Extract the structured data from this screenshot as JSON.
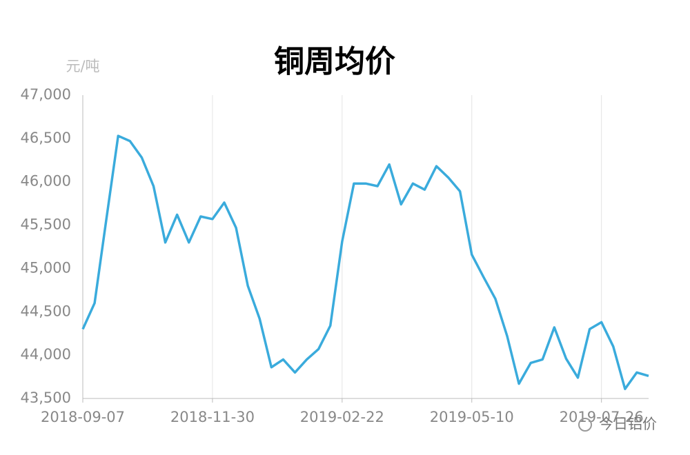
{
  "chart_data": {
    "type": "line",
    "title": "铜周均价",
    "y_label": "元/吨",
    "watermark": "今日铝价",
    "categories": [
      "2018-09-07",
      null,
      null,
      null,
      null,
      null,
      null,
      null,
      null,
      null,
      null,
      "2018-11-30",
      null,
      null,
      null,
      null,
      null,
      null,
      null,
      null,
      null,
      null,
      "2019-02-22",
      null,
      null,
      null,
      null,
      null,
      null,
      null,
      null,
      null,
      null,
      "2019-05-10",
      null,
      null,
      null,
      null,
      null,
      null,
      null,
      null,
      null,
      null,
      "2019-07-26",
      null,
      null,
      null,
      null
    ],
    "series": [
      {
        "name": "铜周均价",
        "color": "#3aabdc",
        "values": [
          44300,
          44600,
          45570,
          46530,
          46470,
          46280,
          45950,
          45300,
          45620,
          45300,
          45600,
          45570,
          45760,
          45470,
          44800,
          44420,
          43860,
          43950,
          43800,
          43950,
          44070,
          44340,
          45310,
          45980,
          45980,
          45950,
          46200,
          45740,
          45980,
          45910,
          46180,
          46050,
          45890,
          45160,
          44900,
          44650,
          44220,
          43670,
          43910,
          43950,
          44320,
          43960,
          43740,
          44300,
          44380,
          44100,
          43610,
          43800,
          43760
        ]
      }
    ],
    "ylim": [
      43500,
      47000
    ],
    "yticks": [
      {
        "value": 43500,
        "label": "43,500"
      },
      {
        "value": 44000,
        "label": "44,000"
      },
      {
        "value": 44500,
        "label": "44,500"
      },
      {
        "value": 45000,
        "label": "45,000"
      },
      {
        "value": 45500,
        "label": "45,500"
      },
      {
        "value": 46000,
        "label": "46,000"
      },
      {
        "value": 46500,
        "label": "46,500"
      },
      {
        "value": 47000,
        "label": "47,000"
      }
    ],
    "grid": true
  }
}
